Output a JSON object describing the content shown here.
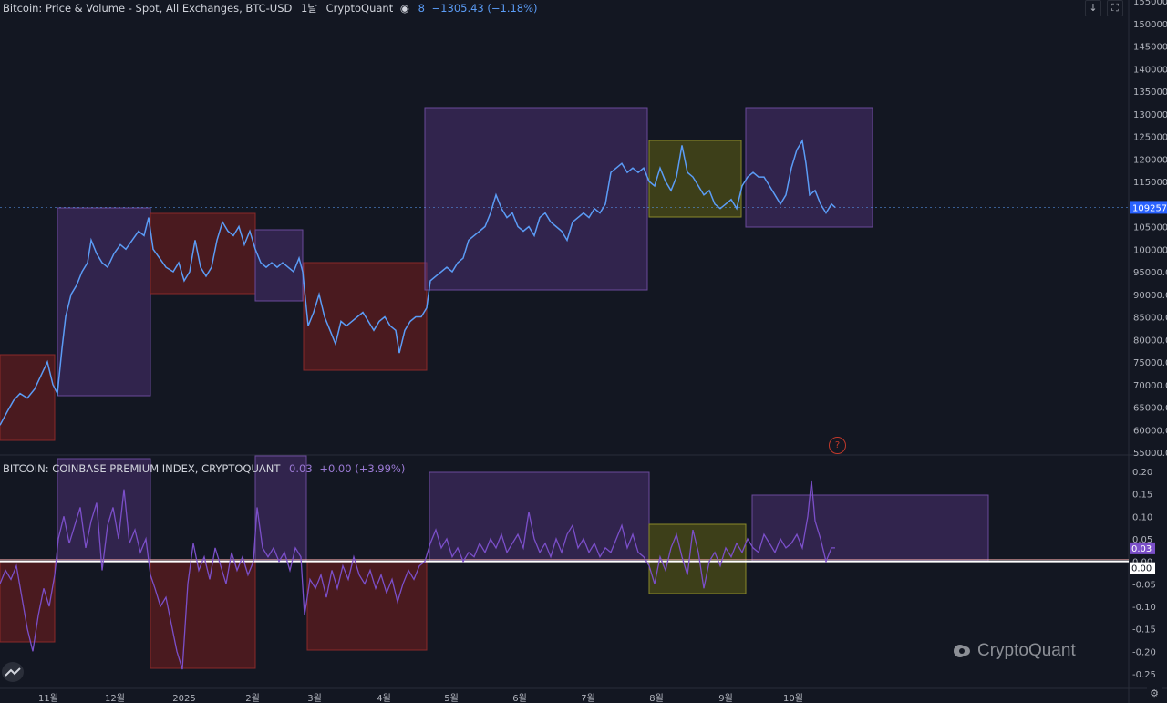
{
  "header": {
    "title": "Bitcoin: Price & Volume - Spot, All Exchanges, BTC-USD",
    "interval": "1날",
    "source": "CryptoQuant",
    "count": "8",
    "change": "−1305.43 (−1.18%)"
  },
  "sub_header": {
    "title": "BITCOIN: COINBASE PREMIUM INDEX, CRYPTOQUANT",
    "value": "0.03",
    "change": "+0.00 (+3.99%)"
  },
  "watermark": "CryptoQuant",
  "icons": [
    "arrow-down-icon",
    "arrow-up-icon",
    "fullscreen-icon"
  ],
  "colors": {
    "background": "#131722",
    "price_line": "#5b9cf6",
    "premium_line": "#7b4fc9",
    "box_purple": "#5a3a8a",
    "box_red": "#6b1f1f",
    "box_olive": "#5a5a10"
  },
  "chart_data": [
    {
      "type": "line",
      "name": "price",
      "y_ticks": [
        "155000.00",
        "150000.00",
        "145000.00",
        "140000.00",
        "135000.00",
        "130000.00",
        "125000.00",
        "120000.00",
        "115000.00",
        "110000.00",
        "105000.00",
        "100000.00",
        "95000.00",
        "90000.00",
        "85000.00",
        "80000.00",
        "75000.00",
        "70000.00",
        "65000.00",
        "60000.00",
        "55000.00"
      ],
      "ylim": [
        55000,
        155000
      ],
      "last_value_label": "109257.7",
      "last_value": 109257.7,
      "points": [
        [
          0,
          61000
        ],
        [
          8,
          64000
        ],
        [
          15,
          66500
        ],
        [
          22,
          68000
        ],
        [
          30,
          67000
        ],
        [
          38,
          69000
        ],
        [
          45,
          72000
        ],
        [
          52,
          75000
        ],
        [
          58,
          70000
        ],
        [
          63,
          68000
        ],
        [
          68,
          78000
        ],
        [
          72,
          85000
        ],
        [
          78,
          90000
        ],
        [
          84,
          92000
        ],
        [
          90,
          95000
        ],
        [
          96,
          97000
        ],
        [
          100,
          102000
        ],
        [
          106,
          99000
        ],
        [
          112,
          97000
        ],
        [
          118,
          96000
        ],
        [
          125,
          99000
        ],
        [
          132,
          101000
        ],
        [
          138,
          100000
        ],
        [
          145,
          102000
        ],
        [
          152,
          104000
        ],
        [
          158,
          103000
        ],
        [
          163,
          107000
        ],
        [
          168,
          100000
        ],
        [
          175,
          98000
        ],
        [
          182,
          96000
        ],
        [
          190,
          95000
        ],
        [
          196,
          97000
        ],
        [
          202,
          93000
        ],
        [
          208,
          95000
        ],
        [
          214,
          102000
        ],
        [
          220,
          96000
        ],
        [
          226,
          94000
        ],
        [
          232,
          96000
        ],
        [
          238,
          102000
        ],
        [
          244,
          106000
        ],
        [
          250,
          104000
        ],
        [
          256,
          103000
        ],
        [
          262,
          105000
        ],
        [
          268,
          101000
        ],
        [
          274,
          104000
        ],
        [
          280,
          100000
        ],
        [
          286,
          97000
        ],
        [
          292,
          96000
        ],
        [
          298,
          97000
        ],
        [
          304,
          96000
        ],
        [
          310,
          97000
        ],
        [
          316,
          96000
        ],
        [
          322,
          95000
        ],
        [
          328,
          98000
        ],
        [
          332,
          95000
        ],
        [
          338,
          83000
        ],
        [
          344,
          86000
        ],
        [
          350,
          90000
        ],
        [
          356,
          85000
        ],
        [
          362,
          82000
        ],
        [
          368,
          79000
        ],
        [
          374,
          84000
        ],
        [
          380,
          83000
        ],
        [
          386,
          84000
        ],
        [
          392,
          85000
        ],
        [
          398,
          86000
        ],
        [
          404,
          84000
        ],
        [
          410,
          82000
        ],
        [
          416,
          84000
        ],
        [
          422,
          85000
        ],
        [
          428,
          83000
        ],
        [
          434,
          82000
        ],
        [
          438,
          77000
        ],
        [
          444,
          82000
        ],
        [
          450,
          84000
        ],
        [
          456,
          85000
        ],
        [
          462,
          85000
        ],
        [
          468,
          87000
        ],
        [
          472,
          93000
        ],
        [
          478,
          94000
        ],
        [
          484,
          95000
        ],
        [
          490,
          96000
        ],
        [
          496,
          95000
        ],
        [
          502,
          97000
        ],
        [
          508,
          98000
        ],
        [
          514,
          102000
        ],
        [
          520,
          103000
        ],
        [
          526,
          104000
        ],
        [
          532,
          105000
        ],
        [
          538,
          108000
        ],
        [
          544,
          112000
        ],
        [
          550,
          109000
        ],
        [
          556,
          107000
        ],
        [
          562,
          108000
        ],
        [
          568,
          105000
        ],
        [
          574,
          104000
        ],
        [
          580,
          105000
        ],
        [
          586,
          103000
        ],
        [
          592,
          107000
        ],
        [
          598,
          108000
        ],
        [
          604,
          106000
        ],
        [
          610,
          105000
        ],
        [
          616,
          104000
        ],
        [
          622,
          102000
        ],
        [
          628,
          106000
        ],
        [
          634,
          107000
        ],
        [
          640,
          108000
        ],
        [
          646,
          107000
        ],
        [
          652,
          109000
        ],
        [
          658,
          108000
        ],
        [
          664,
          110000
        ],
        [
          670,
          117000
        ],
        [
          676,
          118000
        ],
        [
          682,
          119000
        ],
        [
          688,
          117000
        ],
        [
          694,
          118000
        ],
        [
          700,
          117000
        ],
        [
          706,
          118000
        ],
        [
          712,
          115000
        ],
        [
          718,
          114000
        ],
        [
          724,
          118000
        ],
        [
          730,
          115000
        ],
        [
          736,
          113000
        ],
        [
          742,
          116000
        ],
        [
          748,
          123000
        ],
        [
          754,
          117000
        ],
        [
          760,
          116000
        ],
        [
          766,
          114000
        ],
        [
          772,
          112000
        ],
        [
          778,
          113000
        ],
        [
          784,
          110000
        ],
        [
          790,
          109000
        ],
        [
          796,
          110000
        ],
        [
          802,
          111000
        ],
        [
          808,
          109000
        ],
        [
          814,
          114000
        ],
        [
          820,
          116000
        ],
        [
          826,
          117000
        ],
        [
          832,
          116000
        ],
        [
          838,
          116000
        ],
        [
          844,
          114000
        ],
        [
          850,
          112000
        ],
        [
          856,
          110000
        ],
        [
          862,
          112000
        ],
        [
          868,
          118000
        ],
        [
          874,
          122000
        ],
        [
          880,
          124000
        ],
        [
          884,
          119000
        ],
        [
          888,
          112000
        ],
        [
          894,
          113000
        ],
        [
          900,
          110000
        ],
        [
          906,
          108000
        ],
        [
          912,
          110000
        ],
        [
          916,
          109257.7
        ]
      ]
    },
    {
      "type": "line",
      "name": "premium",
      "y_ticks": [
        "0.20",
        "0.15",
        "0.10",
        "0.05",
        "0.00",
        "-0.05",
        "-0.10",
        "-0.15",
        "-0.20",
        "-0.25"
      ],
      "ylim": [
        -0.25,
        0.2
      ],
      "last_value_label": "0.03",
      "zero_label": "0.00",
      "points": [
        [
          0,
          -0.05
        ],
        [
          6,
          -0.02
        ],
        [
          12,
          -0.04
        ],
        [
          18,
          -0.01
        ],
        [
          24,
          -0.08
        ],
        [
          30,
          -0.15
        ],
        [
          36,
          -0.2
        ],
        [
          42,
          -0.12
        ],
        [
          48,
          -0.06
        ],
        [
          54,
          -0.1
        ],
        [
          60,
          -0.03
        ],
        [
          64,
          0.05
        ],
        [
          70,
          0.1
        ],
        [
          76,
          0.04
        ],
        [
          82,
          0.08
        ],
        [
          88,
          0.12
        ],
        [
          94,
          0.03
        ],
        [
          100,
          0.09
        ],
        [
          106,
          0.13
        ],
        [
          112,
          -0.02
        ],
        [
          118,
          0.08
        ],
        [
          124,
          0.12
        ],
        [
          130,
          0.05
        ],
        [
          136,
          0.16
        ],
        [
          142,
          0.04
        ],
        [
          148,
          0.07
        ],
        [
          154,
          0.02
        ],
        [
          160,
          0.05
        ],
        [
          165,
          -0.03
        ],
        [
          170,
          -0.06
        ],
        [
          176,
          -0.1
        ],
        [
          182,
          -0.08
        ],
        [
          188,
          -0.14
        ],
        [
          194,
          -0.2
        ],
        [
          200,
          -0.24
        ],
        [
          206,
          -0.05
        ],
        [
          212,
          0.04
        ],
        [
          218,
          -0.02
        ],
        [
          224,
          0.01
        ],
        [
          230,
          -0.04
        ],
        [
          236,
          0.03
        ],
        [
          242,
          -0.01
        ],
        [
          248,
          -0.05
        ],
        [
          254,
          0.02
        ],
        [
          260,
          -0.02
        ],
        [
          266,
          0.01
        ],
        [
          272,
          -0.03
        ],
        [
          278,
          0.0
        ],
        [
          282,
          0.12
        ],
        [
          288,
          0.03
        ],
        [
          294,
          0.01
        ],
        [
          300,
          0.03
        ],
        [
          306,
          0.0
        ],
        [
          312,
          0.02
        ],
        [
          318,
          -0.02
        ],
        [
          324,
          0.03
        ],
        [
          330,
          0.01
        ],
        [
          334,
          -0.12
        ],
        [
          340,
          -0.04
        ],
        [
          346,
          -0.06
        ],
        [
          352,
          -0.03
        ],
        [
          358,
          -0.08
        ],
        [
          364,
          -0.02
        ],
        [
          370,
          -0.06
        ],
        [
          376,
          -0.01
        ],
        [
          382,
          -0.04
        ],
        [
          388,
          0.01
        ],
        [
          394,
          -0.03
        ],
        [
          400,
          -0.05
        ],
        [
          406,
          -0.02
        ],
        [
          412,
          -0.06
        ],
        [
          418,
          -0.03
        ],
        [
          424,
          -0.07
        ],
        [
          430,
          -0.04
        ],
        [
          436,
          -0.09
        ],
        [
          442,
          -0.05
        ],
        [
          448,
          -0.02
        ],
        [
          454,
          -0.04
        ],
        [
          460,
          -0.01
        ],
        [
          466,
          0.0
        ],
        [
          472,
          0.04
        ],
        [
          478,
          0.07
        ],
        [
          484,
          0.03
        ],
        [
          490,
          0.05
        ],
        [
          496,
          0.01
        ],
        [
          502,
          0.03
        ],
        [
          508,
          0.0
        ],
        [
          514,
          0.02
        ],
        [
          520,
          0.01
        ],
        [
          526,
          0.04
        ],
        [
          532,
          0.02
        ],
        [
          538,
          0.05
        ],
        [
          544,
          0.03
        ],
        [
          550,
          0.06
        ],
        [
          556,
          0.02
        ],
        [
          562,
          0.04
        ],
        [
          568,
          0.06
        ],
        [
          574,
          0.03
        ],
        [
          580,
          0.11
        ],
        [
          586,
          0.05
        ],
        [
          592,
          0.02
        ],
        [
          598,
          0.04
        ],
        [
          604,
          0.01
        ],
        [
          610,
          0.05
        ],
        [
          616,
          0.02
        ],
        [
          622,
          0.06
        ],
        [
          628,
          0.08
        ],
        [
          634,
          0.03
        ],
        [
          640,
          0.05
        ],
        [
          646,
          0.02
        ],
        [
          652,
          0.04
        ],
        [
          658,
          0.01
        ],
        [
          664,
          0.03
        ],
        [
          670,
          0.02
        ],
        [
          676,
          0.05
        ],
        [
          682,
          0.08
        ],
        [
          688,
          0.03
        ],
        [
          694,
          0.06
        ],
        [
          700,
          0.02
        ],
        [
          706,
          0.01
        ],
        [
          712,
          -0.01
        ],
        [
          718,
          -0.05
        ],
        [
          724,
          0.01
        ],
        [
          730,
          -0.02
        ],
        [
          736,
          0.03
        ],
        [
          742,
          0.06
        ],
        [
          748,
          0.01
        ],
        [
          754,
          -0.03
        ],
        [
          760,
          0.07
        ],
        [
          766,
          0.02
        ],
        [
          772,
          -0.06
        ],
        [
          778,
          0.0
        ],
        [
          784,
          0.02
        ],
        [
          790,
          -0.01
        ],
        [
          796,
          0.03
        ],
        [
          802,
          0.01
        ],
        [
          808,
          0.04
        ],
        [
          814,
          0.02
        ],
        [
          820,
          0.05
        ],
        [
          826,
          0.03
        ],
        [
          832,
          0.02
        ],
        [
          838,
          0.06
        ],
        [
          844,
          0.04
        ],
        [
          850,
          0.02
        ],
        [
          856,
          0.05
        ],
        [
          862,
          0.03
        ],
        [
          868,
          0.04
        ],
        [
          874,
          0.06
        ],
        [
          880,
          0.03
        ],
        [
          886,
          0.1
        ],
        [
          890,
          0.18
        ],
        [
          894,
          0.09
        ],
        [
          900,
          0.05
        ],
        [
          906,
          0.0
        ],
        [
          912,
          0.03
        ],
        [
          916,
          0.03
        ]
      ]
    }
  ],
  "x_ticks": [
    "11월",
    "12월",
    "2025",
    "2월",
    "3월",
    "4월",
    "5월",
    "6월",
    "7월",
    "8월",
    "9월",
    "10월"
  ],
  "x_tick_positions_note": ""
}
